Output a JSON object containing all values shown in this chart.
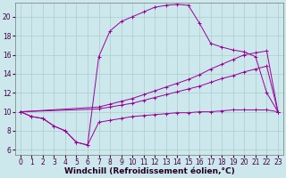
{
  "background_color": "#cce8ec",
  "grid_color": "#aacccc",
  "line_color": "#990099",
  "xlabel": "Windchill (Refroidissement éolien,°C)",
  "xlabel_fontsize": 6.5,
  "tick_fontsize": 5.5,
  "xlim": [
    -0.5,
    23.5
  ],
  "ylim": [
    5.5,
    21.5
  ],
  "yticks": [
    6,
    8,
    10,
    12,
    14,
    16,
    18,
    20
  ],
  "xticks": [
    0,
    1,
    2,
    3,
    4,
    5,
    6,
    7,
    8,
    9,
    10,
    11,
    12,
    13,
    14,
    15,
    16,
    17,
    18,
    19,
    20,
    21,
    22,
    23
  ],
  "line1_x": [
    0,
    1,
    2,
    3,
    4,
    5,
    6,
    7,
    8,
    9,
    10,
    11,
    12,
    13,
    14,
    15,
    16,
    17,
    18,
    19,
    20,
    21,
    22,
    23
  ],
  "line1_y": [
    10.0,
    9.5,
    9.3,
    8.5,
    8.0,
    6.8,
    6.5,
    8.9,
    9.1,
    9.3,
    9.5,
    9.6,
    9.7,
    9.8,
    9.9,
    9.9,
    10.0,
    10.0,
    10.1,
    10.2,
    10.2,
    10.2,
    10.2,
    10.0
  ],
  "line2_x": [
    0,
    1,
    2,
    3,
    4,
    5,
    6,
    7,
    8,
    9,
    10,
    11,
    12,
    13,
    14,
    15,
    16,
    17,
    18,
    19,
    20,
    21,
    22,
    23
  ],
  "line2_y": [
    10.0,
    9.5,
    9.3,
    8.5,
    8.0,
    6.8,
    6.5,
    15.8,
    18.5,
    19.5,
    20.0,
    20.5,
    21.0,
    21.2,
    21.3,
    21.2,
    19.3,
    17.2,
    16.8,
    16.5,
    16.3,
    15.8,
    12.0,
    10.0
  ],
  "line3_x": [
    0,
    7,
    8,
    9,
    10,
    11,
    12,
    13,
    14,
    15,
    16,
    17,
    18,
    19,
    20,
    21,
    22,
    23
  ],
  "line3_y": [
    10.0,
    10.3,
    10.5,
    10.7,
    10.9,
    11.2,
    11.5,
    11.8,
    12.1,
    12.4,
    12.7,
    13.1,
    13.5,
    13.8,
    14.2,
    14.5,
    14.8,
    10.0
  ],
  "line4_x": [
    0,
    7,
    8,
    9,
    10,
    11,
    12,
    13,
    14,
    15,
    16,
    17,
    18,
    19,
    20,
    21,
    22,
    23
  ],
  "line4_y": [
    10.0,
    10.5,
    10.8,
    11.1,
    11.4,
    11.8,
    12.2,
    12.6,
    13.0,
    13.4,
    13.9,
    14.5,
    15.0,
    15.5,
    16.0,
    16.2,
    16.4,
    10.0
  ]
}
